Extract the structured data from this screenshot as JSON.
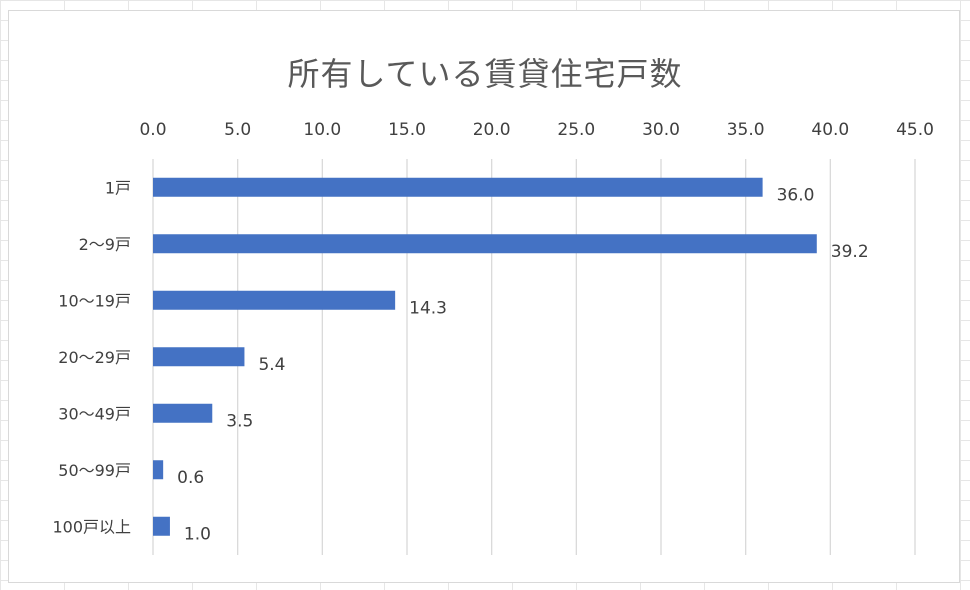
{
  "chart_data": {
    "type": "bar",
    "orientation": "horizontal",
    "title": "所有している賃貸住宅戸数",
    "categories": [
      "1戸",
      "2〜9戸",
      "10〜19戸",
      "20〜29戸",
      "30〜49戸",
      "50〜99戸",
      "100戸以上"
    ],
    "values": [
      36.0,
      39.2,
      14.3,
      5.4,
      3.5,
      0.6,
      1.0
    ],
    "data_labels": [
      "36.0",
      "39.2",
      "14.3",
      "5.4",
      "3.5",
      "0.6",
      "1.0"
    ],
    "xlim": [
      0,
      45
    ],
    "x_ticks": [
      0,
      5,
      10,
      15,
      20,
      25,
      30,
      35,
      40,
      45
    ],
    "x_tick_labels": [
      "0.0",
      "5.0",
      "10.0",
      "15.0",
      "20.0",
      "25.0",
      "30.0",
      "35.0",
      "40.0",
      "45.0"
    ],
    "x_axis_position": "top",
    "grid": true,
    "legend": "none",
    "bar_color": "#4472c4",
    "grid_color": "#d9d9d9"
  }
}
